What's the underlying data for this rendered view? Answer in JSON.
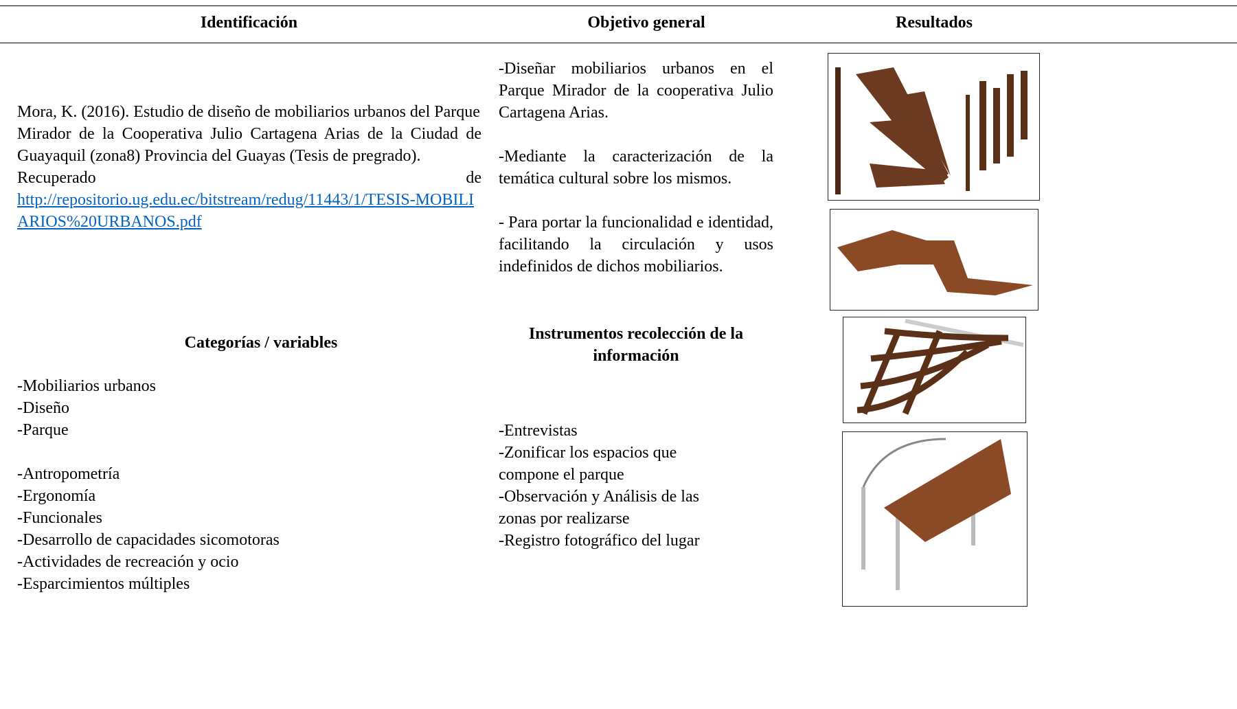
{
  "header": {
    "identification": "Identificación",
    "objective": "Objetivo general",
    "results": "Resultados"
  },
  "identification": {
    "citation_part1": "Mora, K. (2016). Estudio de diseño de mobiliarios urbanos del Parque",
    "citation_part2": "Mirador de la Cooperativa Julio Cartagena Arias de la Ciudad de Guayaquil (zona8) Provincia del Guayas (Tesis de pregrado).",
    "retrieved": "Recuperado de",
    "url": "http://repositorio.ug.edu.ec/bitstream/redug/11443/1/TESIS-MOBILIARIOS%20URBANOS.pdf"
  },
  "objective": {
    "paragraphs": [
      "-Diseñar mobiliarios urbanos en el Parque Mirador de la cooperativa Julio Cartagena Arias.",
      "-Mediante la caracterización de la temática cultural sobre los mismos.",
      "- Para portar la funcionalidad e identidad, facilitando la circulación y usos indefinidos de dichos mobiliarios."
    ]
  },
  "categories": {
    "title": "Categorías / variables",
    "group1": [
      "-Mobiliarios urbanos",
      "-Diseño",
      "-Parque"
    ],
    "group2": [
      "-Antropometría",
      "-Ergonomía",
      "-Funcionales",
      "-Desarrollo de capacidades sicomotoras",
      "-Actividades de recreación y ocio",
      "-Esparcimientos múltiples"
    ]
  },
  "instruments": {
    "title": "Instrumentos recolección de la información",
    "items": [
      "-Entrevistas",
      "-Zonificar los espacios que compone el parque",
      "-Observación y Análisis de las zonas por realizarse",
      "-Registro fotográfico del lugar"
    ]
  }
}
